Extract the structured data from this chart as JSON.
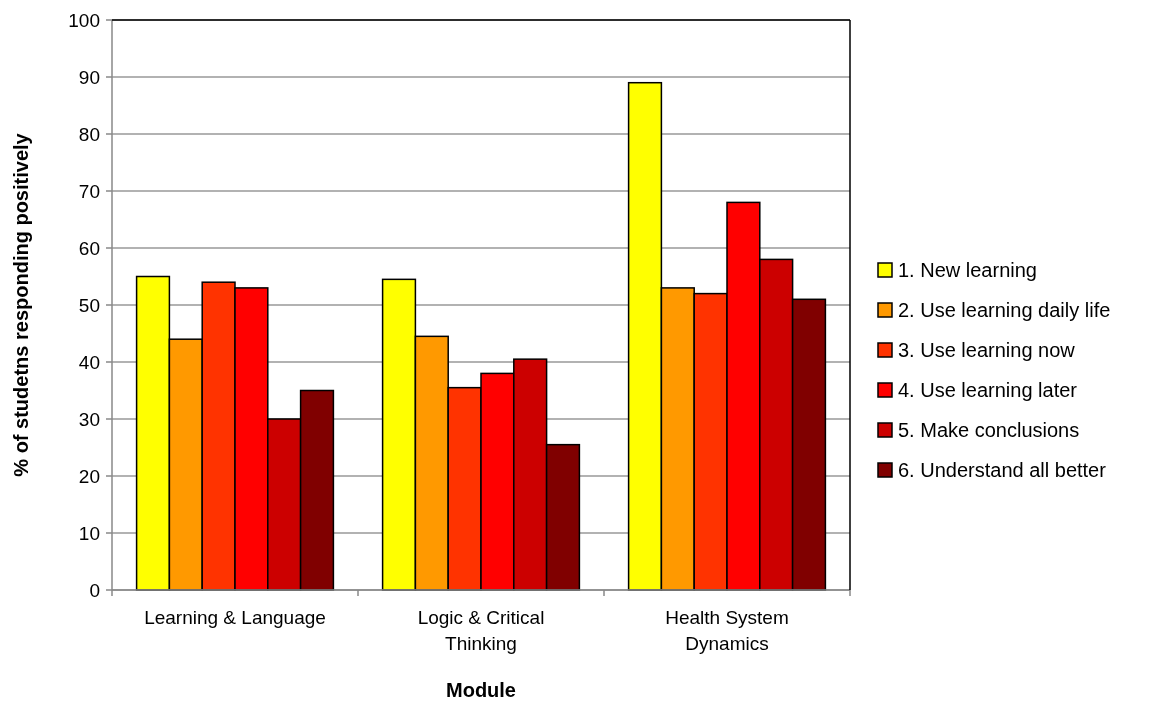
{
  "chart_data": {
    "type": "bar",
    "xlabel": "Module",
    "ylabel": "% of studetns responding positively",
    "categories": [
      "Learning & Language",
      "Logic & Critical Thinking",
      "Health System Dynamics"
    ],
    "series": [
      {
        "name": "1. New learning",
        "color": "#ffff00",
        "values": [
          55,
          54.5,
          89
        ]
      },
      {
        "name": "2. Use learning daily life",
        "color": "#ff9900",
        "values": [
          44,
          44.5,
          53
        ]
      },
      {
        "name": "3. Use learning now",
        "color": "#ff3300",
        "values": [
          54,
          35.5,
          52
        ]
      },
      {
        "name": "4. Use learning later",
        "color": "#ff0000",
        "values": [
          53,
          38,
          68
        ]
      },
      {
        "name": "5. Make conclusions",
        "color": "#cc0000",
        "values": [
          30,
          40.5,
          58
        ]
      },
      {
        "name": "6. Understand all better",
        "color": "#800000",
        "values": [
          35,
          25.5,
          51
        ]
      }
    ],
    "ylim": [
      0,
      100
    ],
    "yticks": [
      0,
      10,
      20,
      30,
      40,
      50,
      60,
      70,
      80,
      90,
      100
    ],
    "grid": "y",
    "legend": "right"
  }
}
